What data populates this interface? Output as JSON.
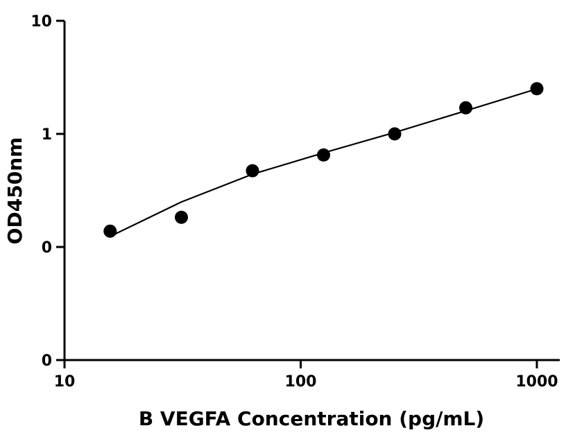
{
  "chart_data": {
    "type": "scatter",
    "title": "",
    "xlabel": "B VEGFA Concentration (pg/mL)",
    "ylabel": "OD450nm",
    "x_scale": "log",
    "y_scale": "log",
    "xlim": [
      10,
      1200
    ],
    "ylim": [
      0.01,
      10
    ],
    "x_ticks": [
      10,
      100,
      1000
    ],
    "x_tick_labels": [
      "10",
      "100",
      "1000"
    ],
    "y_ticks": [
      0.01,
      0.1,
      1,
      10
    ],
    "y_tick_labels": [
      "0",
      "0",
      "1",
      "10"
    ],
    "grid": false,
    "legend": "none",
    "series": [
      {
        "x": [
          15.6,
          31.25,
          62.5,
          125,
          250,
          500,
          1000
        ],
        "y": [
          0.138,
          0.183,
          0.472,
          0.651,
          1.0,
          1.7,
          2.51
        ],
        "marker": "circle",
        "color": "#000000"
      }
    ],
    "fit_curve": {
      "x": [
        15.6,
        31.25,
        62.5,
        125,
        250,
        500,
        1000
      ],
      "y": [
        0.124,
        0.25,
        0.44,
        0.68,
        1.03,
        1.6,
        2.5
      ],
      "color": "#000000"
    }
  }
}
